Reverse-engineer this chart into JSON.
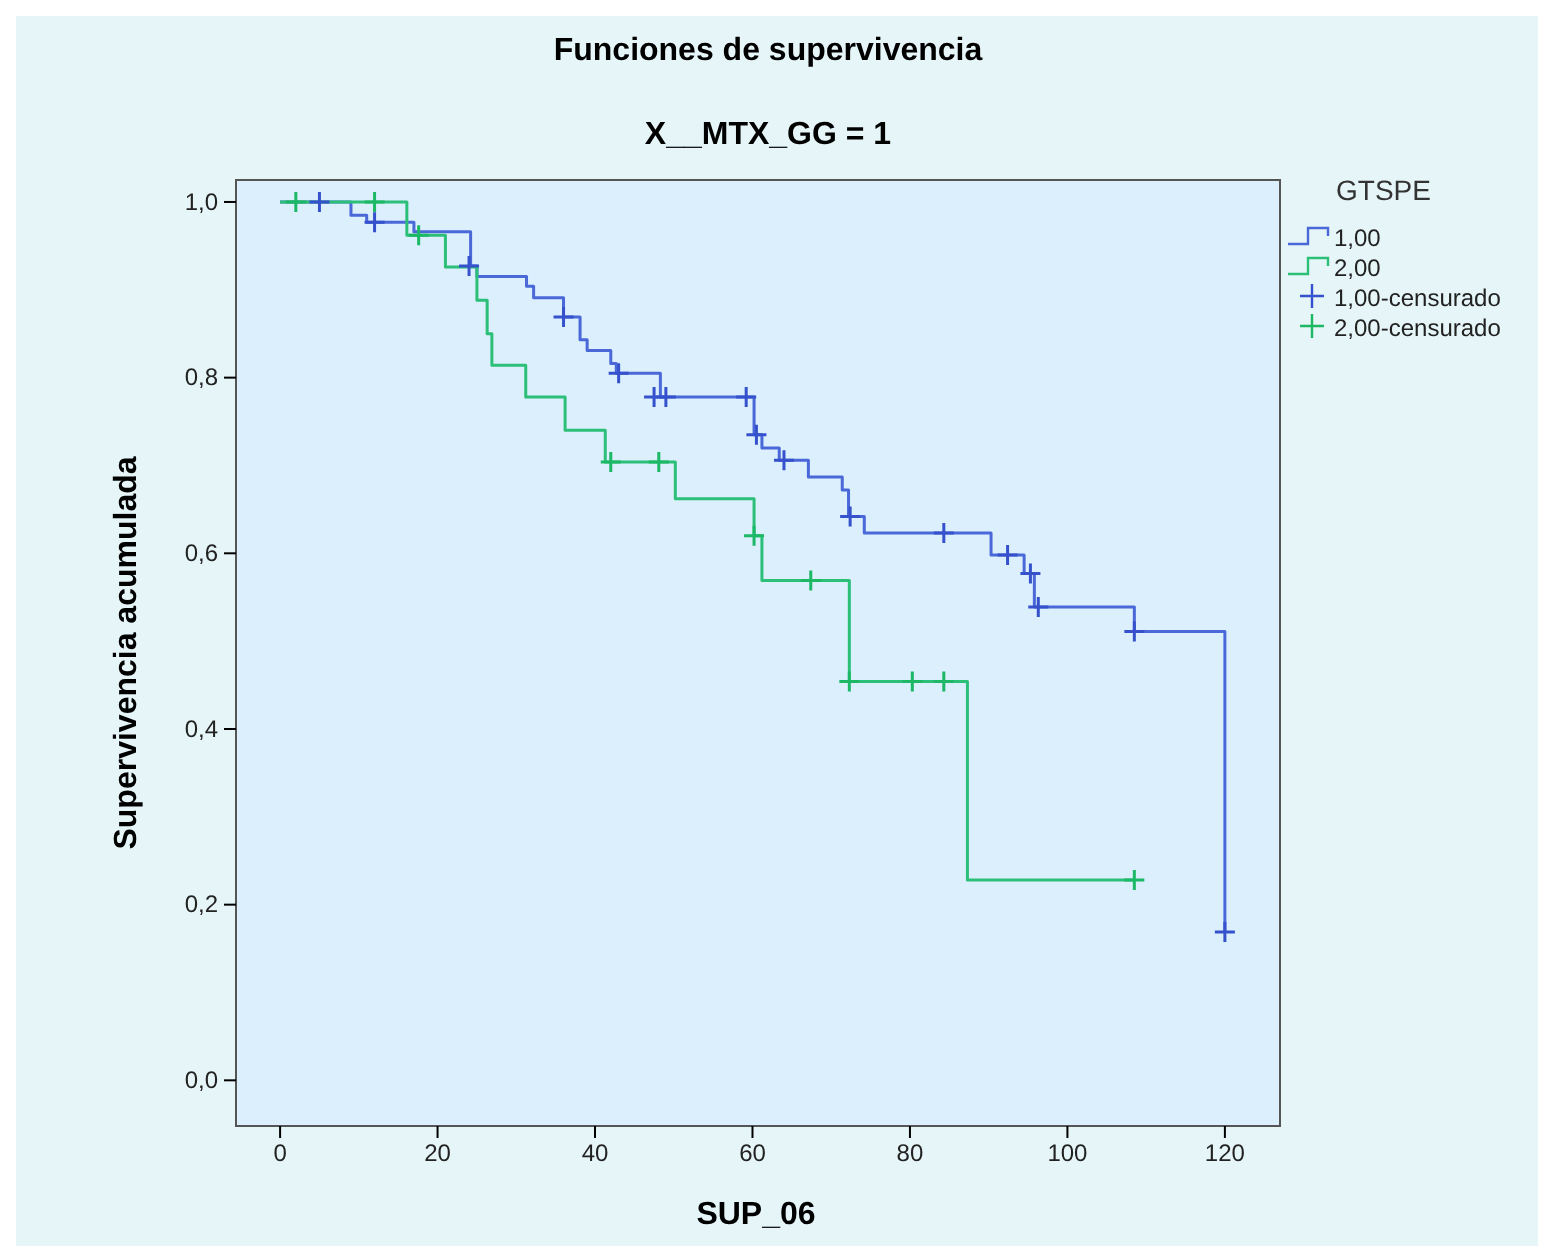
{
  "chart_data": {
    "type": "step",
    "title": "Funciones de supervivencia",
    "subtitle": "X__MTX_GG = 1",
    "xlabel": "SUP_06",
    "ylabel": "Supervivencia acumulada",
    "legend_title": "GTSPE",
    "legend": "right",
    "grid": false,
    "xlim": [
      -5.6,
      127
    ],
    "xticks": [
      0,
      20,
      40,
      60,
      80,
      100,
      120
    ],
    "ylim": [
      -0.052,
      1.025
    ],
    "yticks": [
      {
        "value": 0,
        "label": "0,0"
      },
      {
        "value": 0.2,
        "label": "0,2"
      },
      {
        "value": 0.4,
        "label": "0,4"
      },
      {
        "value": 0.6,
        "label": "0,6"
      },
      {
        "value": 0.8,
        "label": "0,8"
      },
      {
        "value": 1,
        "label": "1,0"
      }
    ],
    "series": [
      {
        "name": "1,00",
        "color": "#4a68d8",
        "x": [
          0,
          9,
          11,
          17,
          24.2,
          25,
          31.3,
          32.2,
          36,
          38.1,
          39,
          42,
          42.7,
          48.3,
          60.2,
          61.2,
          63.4,
          67.1,
          71.4,
          72.2,
          74.2,
          90.3,
          94.5,
          95.8,
          108.5,
          120
        ],
        "values": [
          1,
          0.985,
          0.977,
          0.966,
          0.927,
          0.915,
          0.904,
          0.891,
          0.869,
          0.843,
          0.831,
          0.816,
          0.805,
          0.778,
          0.735,
          0.72,
          0.706,
          0.687,
          0.672,
          0.642,
          0.623,
          0.598,
          0.577,
          0.539,
          0.511,
          0.169
        ]
      },
      {
        "name": "2,00",
        "color": "#2bbf78",
        "x": [
          0,
          16.1,
          21,
          25,
          26.3,
          26.9,
          31.2,
          36.2,
          41.3,
          50.2,
          60.2,
          61.2,
          72.3,
          87.3,
          108.5
        ],
        "values": [
          1,
          0.962,
          0.926,
          0.888,
          0.85,
          0.814,
          0.778,
          0.74,
          0.704,
          0.662,
          0.62,
          0.569,
          0.454,
          0.228,
          0.228
        ]
      },
      {
        "name": "1,00-censurado",
        "type": "scatter",
        "marker": "cross",
        "color": "#3552cc",
        "x": [
          5,
          12,
          24,
          36,
          43,
          47.5,
          49,
          59.2,
          60.5,
          64,
          72.4,
          84.3,
          92.4,
          95.3,
          96.3,
          108.5,
          120
        ],
        "values": [
          1,
          0.977,
          0.927,
          0.869,
          0.805,
          0.778,
          0.778,
          0.778,
          0.735,
          0.706,
          0.642,
          0.623,
          0.598,
          0.577,
          0.539,
          0.511,
          0.169
        ]
      },
      {
        "name": "2,00-censurado",
        "type": "scatter",
        "marker": "cross",
        "color": "#1cb865",
        "x": [
          2,
          12,
          17.6,
          42,
          48.1,
          60.2,
          67.4,
          72.3,
          80.3,
          84.3,
          108.5
        ],
        "values": [
          1,
          1,
          0.962,
          0.704,
          0.704,
          0.62,
          0.569,
          0.454,
          0.454,
          0.454,
          0.228
        ]
      }
    ]
  }
}
